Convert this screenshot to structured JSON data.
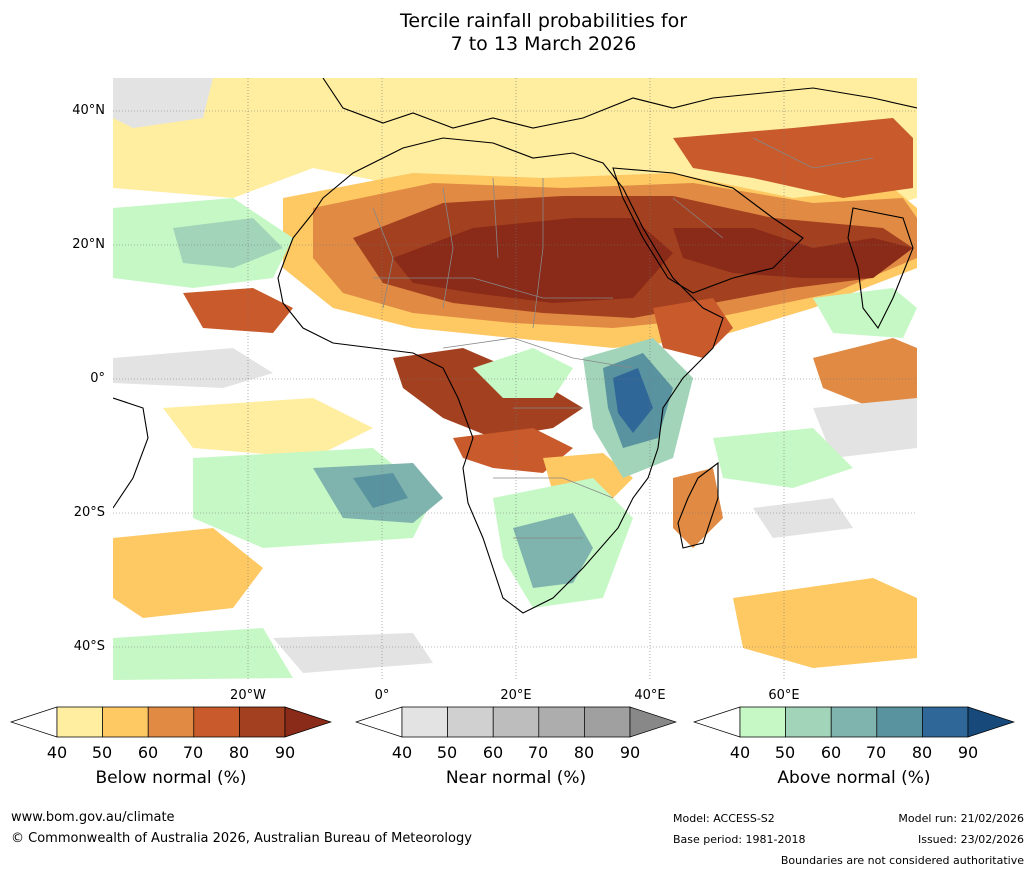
{
  "title": {
    "line1": "Tercile rainfall probabilities for",
    "line2": "7 to 13 March 2026"
  },
  "map": {
    "lat_labels": [
      "40°N",
      "20°N",
      "0°",
      "20°S",
      "40°S"
    ],
    "lon_labels": [
      "20°W",
      "0°",
      "20°E",
      "40°E",
      "60°E"
    ],
    "colors": {
      "below": [
        "#ffeda0",
        "#fec863",
        "#e08a43",
        "#c85a2b",
        "#a3401f",
        "#8a2a18"
      ],
      "near": [
        "#e3e3e3",
        "#d0d0d0",
        "#bdbdbd",
        "#adadad",
        "#a0a0a0",
        "#888888"
      ],
      "above": [
        "#c6f8c6",
        "#a1d4b8",
        "#7fb3ad",
        "#5a93a0",
        "#2f6898",
        "#174a7a"
      ],
      "coast": "#000000",
      "border": "#888888"
    }
  },
  "colorbars": [
    {
      "label": "Below normal (%)",
      "ticks": [
        "40",
        "50",
        "60",
        "70",
        "80",
        "90"
      ]
    },
    {
      "label": "Near normal (%)",
      "ticks": [
        "40",
        "50",
        "60",
        "70",
        "80",
        "90"
      ]
    },
    {
      "label": "Above normal (%)",
      "ticks": [
        "40",
        "50",
        "60",
        "70",
        "80",
        "90"
      ]
    }
  ],
  "footer": {
    "url": "www.bom.gov.au/climate",
    "copyright": "© Commonwealth of Australia 2026, Australian Bureau of Meteorology",
    "model": "Model: ACCESS-S2",
    "base_period": "Base period: 1981-2018",
    "model_run": "Model run: 21/02/2026",
    "issued": "Issued: 23/02/2026",
    "disclaimer": "Boundaries are not considered authoritative"
  }
}
